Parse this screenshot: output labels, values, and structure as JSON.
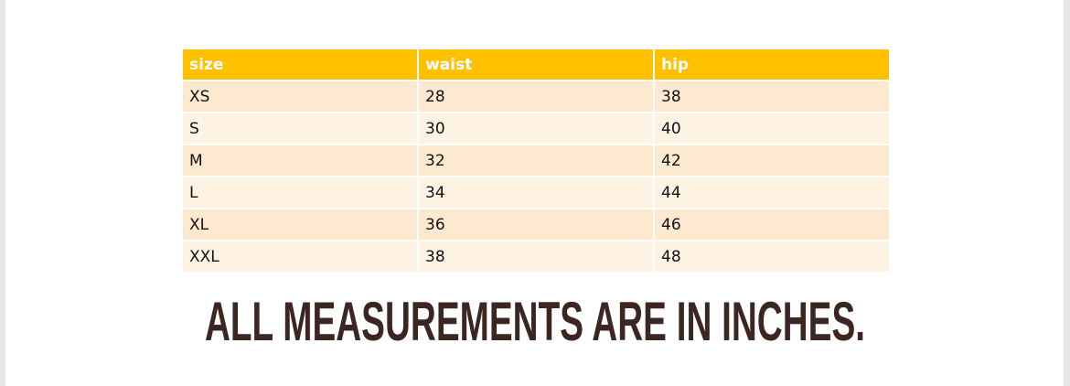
{
  "table": {
    "columns": [
      "size",
      "waist",
      "hip"
    ],
    "rows": [
      [
        "XS",
        28,
        38
      ],
      [
        "S",
        30,
        40
      ],
      [
        "M",
        32,
        42
      ],
      [
        "L",
        34,
        44
      ],
      [
        "XL",
        36,
        46
      ],
      [
        "XXL",
        38,
        48
      ]
    ]
  },
  "note": "ALL MEASUREMENTS ARE IN INCHES."
}
